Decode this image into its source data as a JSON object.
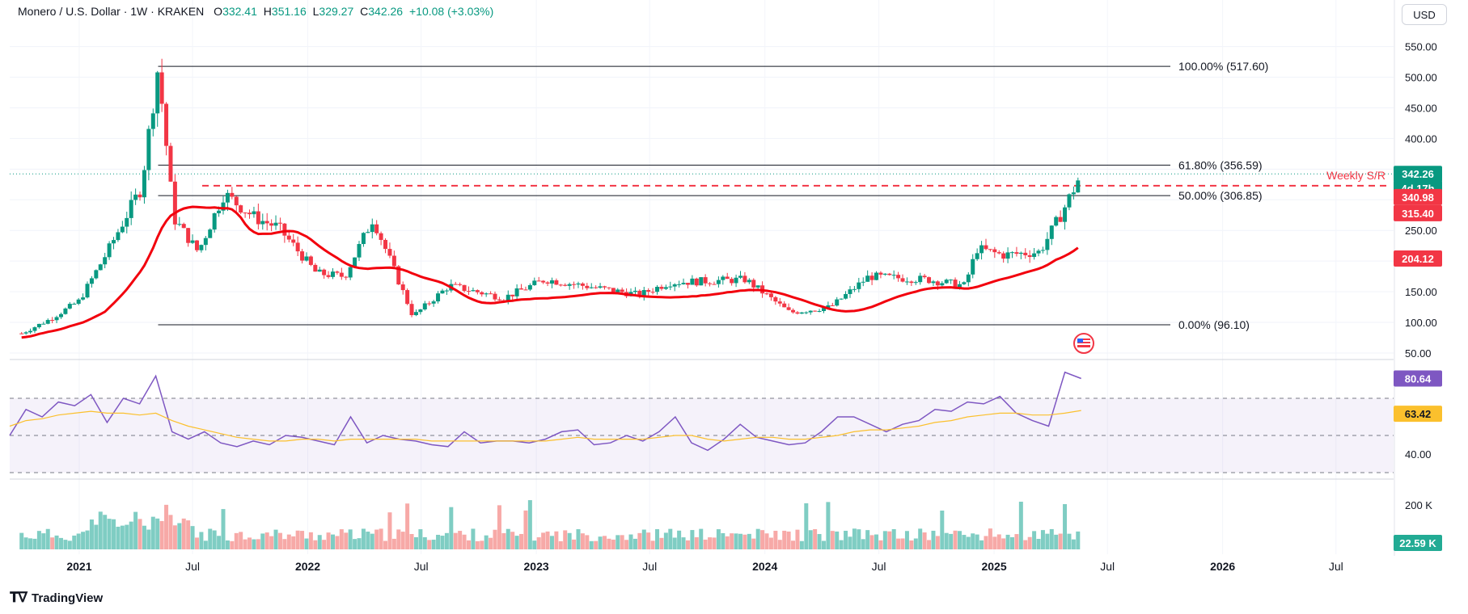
{
  "header": {
    "symbol": "Monero / U.S. Dollar · 1W · KRAKEN",
    "open_label": "O",
    "open": "332.41",
    "high_label": "H",
    "high": "351.16",
    "low_label": "L",
    "low": "329.27",
    "close_label": "C",
    "close": "342.26",
    "change": "+10.08 (+3.03%)"
  },
  "currency_button": "USD",
  "brand": {
    "name": "TradingView",
    "logo": "tradingview-logo-icon"
  },
  "colors": {
    "up": "#089981",
    "down": "#f23645",
    "ma": "#f2000d",
    "rsi": "#7e57c2",
    "rsi_ma": "#fbc02d",
    "fib": "#131722",
    "sr": "#f23645"
  },
  "chart_data": [
    {
      "type": "candlestick",
      "title": "Monero / U.S. Dollar · 1W · KRAKEN",
      "ylim": [
        50,
        560
      ],
      "y_ticks": [
        "550.00",
        "500.00",
        "450.00",
        "400.00",
        "350.00",
        "300.00",
        "250.00",
        "200.00",
        "150.00",
        "100.00",
        "50.00"
      ],
      "x_ticks": [
        "2021",
        "Jul",
        "2022",
        "Jul",
        "2023",
        "Jul",
        "2024",
        "Jul",
        "2025",
        "Jul",
        "2026",
        "Jul"
      ],
      "x_range": [
        "2020-09",
        "2026-10"
      ],
      "ohlc_keypoints": [
        {
          "date": "2020-10-01",
          "price": 82
        },
        {
          "date": "2020-11-15",
          "price": 105
        },
        {
          "date": "2021-01-01",
          "price": 135
        },
        {
          "date": "2021-02-15",
          "price": 215
        },
        {
          "date": "2021-04-10",
          "price": 320
        },
        {
          "date": "2021-05-07",
          "price": 517.6
        },
        {
          "date": "2021-06-01",
          "price": 270
        },
        {
          "date": "2021-07-10",
          "price": 215
        },
        {
          "date": "2021-08-20",
          "price": 310
        },
        {
          "date": "2021-10-10",
          "price": 270
        },
        {
          "date": "2021-11-15",
          "price": 255
        },
        {
          "date": "2022-01-15",
          "price": 180
        },
        {
          "date": "2022-03-01",
          "price": 175
        },
        {
          "date": "2022-04-15",
          "price": 270
        },
        {
          "date": "2022-06-18",
          "price": 110
        },
        {
          "date": "2022-08-15",
          "price": 160
        },
        {
          "date": "2022-11-10",
          "price": 140
        },
        {
          "date": "2023-01-15",
          "price": 170
        },
        {
          "date": "2023-06-15",
          "price": 145
        },
        {
          "date": "2023-08-01",
          "price": 165
        },
        {
          "date": "2023-12-01",
          "price": 170
        },
        {
          "date": "2024-02-10",
          "price": 116
        },
        {
          "date": "2024-04-15",
          "price": 125
        },
        {
          "date": "2024-06-15",
          "price": 175
        },
        {
          "date": "2024-09-15",
          "price": 170
        },
        {
          "date": "2024-11-15",
          "price": 160
        },
        {
          "date": "2024-12-05",
          "price": 220
        },
        {
          "date": "2025-01-15",
          "price": 210
        },
        {
          "date": "2025-03-15",
          "price": 215
        },
        {
          "date": "2025-04-20",
          "price": 280
        },
        {
          "date": "2025-05-20",
          "price": 342.26
        }
      ],
      "moving_average": {
        "label": "204.12",
        "value": 204.12,
        "color": "#f2000d"
      },
      "fib_levels": [
        {
          "label": "100.00% (517.60)",
          "value": 517.6
        },
        {
          "label": "61.80% (356.59)",
          "value": 356.59
        },
        {
          "label": "50.00% (306.85)",
          "value": 306.85
        },
        {
          "label": "0.00% (96.10)",
          "value": 96.1
        }
      ],
      "annotation": {
        "label": "Weekly S/R",
        "value": 323
      },
      "price_labels": {
        "last": "342.26",
        "countdown": "4d 17h",
        "sr_a": "340.98",
        "sr_b": "315.40",
        "ma": "204.12"
      }
    },
    {
      "type": "line",
      "title": "",
      "ylim": [
        30,
        90
      ],
      "y_ticks": [
        "40.00"
      ],
      "band": [
        70,
        30
      ],
      "series": [
        {
          "values": [
            50,
            64,
            60,
            68,
            66,
            72,
            57,
            70,
            67,
            82,
            52,
            48,
            52,
            46,
            44,
            47,
            45,
            50,
            49,
            47,
            45,
            60,
            46,
            50,
            48,
            47,
            45,
            44,
            52,
            46,
            47,
            47,
            46,
            48,
            52,
            53,
            45,
            46,
            50,
            47,
            52,
            60,
            46,
            42,
            48,
            56,
            49,
            47,
            45,
            46,
            52,
            60,
            60,
            56,
            52,
            56,
            58,
            64,
            63,
            68,
            67,
            71,
            62,
            58,
            55,
            84,
            80.64
          ],
          "color": "#7e57c2"
        },
        {
          "values": [
            55,
            58,
            59,
            61,
            62,
            63,
            62,
            62,
            61,
            62,
            58,
            55,
            53,
            51,
            49,
            48,
            47,
            47,
            48,
            48,
            47,
            48,
            48,
            48,
            48,
            48,
            47,
            47,
            47,
            47,
            47,
            47,
            47,
            47,
            48,
            49,
            48,
            48,
            48,
            48,
            49,
            50,
            50,
            48,
            47,
            48,
            49,
            49,
            48,
            48,
            49,
            50,
            52,
            53,
            53,
            54,
            55,
            57,
            58,
            60,
            61,
            62,
            62,
            61,
            61,
            62,
            63.42
          ],
          "color": "#fbc02d"
        }
      ],
      "labels": {
        "rsi": "80.64",
        "rsi_ma": "63.42"
      }
    },
    {
      "type": "bar",
      "title": "",
      "y_ticks": [
        "200 K"
      ],
      "labels": {
        "last": "22.59 K"
      }
    }
  ]
}
